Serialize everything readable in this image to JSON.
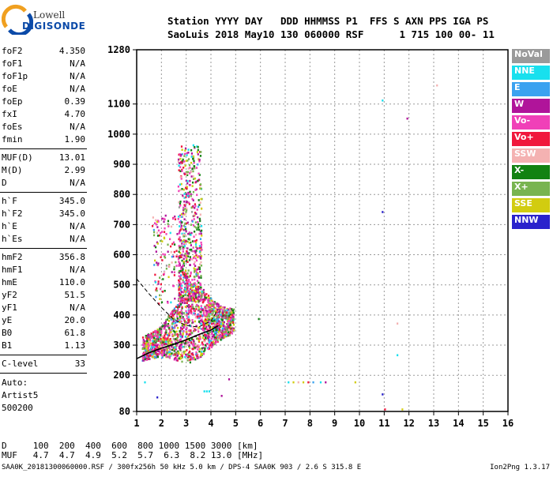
{
  "logo": {
    "line1": "Lowell",
    "line2": "DIGISONDE"
  },
  "header": {
    "line1": "Station YYYY DAY   DDD HHMMSS P1  FFS S AXN PPS IGA PS",
    "line2": "SaoLuis 2018 May10 130 060000 RSF      1 715 100 00- 11"
  },
  "params": [
    {
      "name": "foF2",
      "value": "4.350"
    },
    {
      "name": "foF1",
      "value": "N/A"
    },
    {
      "name": "foF1p",
      "value": "N/A"
    },
    {
      "name": "foE",
      "value": "N/A"
    },
    {
      "name": "foEp",
      "value": "0.39"
    },
    {
      "name": "fxI",
      "value": "4.70"
    },
    {
      "name": "foEs",
      "value": "N/A"
    },
    {
      "name": "fmin",
      "value": "1.90"
    },
    {
      "name": "MUF(D)",
      "value": "13.01"
    },
    {
      "name": "M(D)",
      "value": "2.99"
    },
    {
      "name": "D",
      "value": "N/A"
    },
    {
      "name": "h`F",
      "value": "345.0"
    },
    {
      "name": "h`F2",
      "value": "345.0"
    },
    {
      "name": "h`E",
      "value": "N/A"
    },
    {
      "name": "h`Es",
      "value": "N/A"
    },
    {
      "name": "hmF2",
      "value": "356.8"
    },
    {
      "name": "hmF1",
      "value": "N/A"
    },
    {
      "name": "hmE",
      "value": "110.0"
    },
    {
      "name": "yF2",
      "value": "51.5"
    },
    {
      "name": "yF1",
      "value": "N/A"
    },
    {
      "name": "yE",
      "value": "20.0"
    },
    {
      "name": "B0",
      "value": "61.8"
    },
    {
      "name": "B1",
      "value": "1.13"
    },
    {
      "name": "C-level",
      "value": "33"
    }
  ],
  "auto_lines": [
    "Auto:",
    "Artist5",
    "500200"
  ],
  "legend": [
    {
      "label": "NoVal",
      "color": "#9a9a9a"
    },
    {
      "label": "NNE",
      "color": "#18e0ee"
    },
    {
      "label": "E",
      "color": "#3aa2f0"
    },
    {
      "label": "W",
      "color": "#b0149a"
    },
    {
      "label": "Vo-",
      "color": "#f040b8"
    },
    {
      "label": "Vo+",
      "color": "#f0183c"
    },
    {
      "label": "SSW",
      "color": "#f4b2b2"
    },
    {
      "label": "X-",
      "color": "#128212"
    },
    {
      "label": "X+",
      "color": "#78b450"
    },
    {
      "label": "SSE",
      "color": "#d2cc10"
    },
    {
      "label": "NNW",
      "color": "#2a22cc"
    }
  ],
  "muf_table": {
    "row1": "D     100  200  400  600  800 1000 1500 3000 [km]",
    "row2": "MUF   4.7  4.7  4.9  5.2  5.7  6.3  8.2 13.0 [MHz]"
  },
  "footer": "SAA0K_20181300060000.RSF / 300fx256h 50 kHz 5.0 km / DPS-4 SAA0K 903 / 2.6 S 315.8 E",
  "version": "Ion2Png 1.3.17",
  "chart_data": {
    "type": "scatter",
    "x_ticks": [
      1,
      2,
      3,
      4,
      5,
      6,
      7,
      8,
      9,
      10,
      11,
      12,
      13,
      14,
      15,
      16
    ],
    "y_ticks": [
      80,
      200,
      300,
      400,
      500,
      600,
      700,
      800,
      900,
      1000,
      1100,
      1280
    ],
    "xlim": [
      1,
      16
    ],
    "ylim": [
      80,
      1280
    ],
    "grid": true,
    "profile_curve": [
      [
        1.0,
        255
      ],
      [
        1.5,
        275
      ],
      [
        2.0,
        290
      ],
      [
        2.5,
        303
      ],
      [
        3.0,
        318
      ],
      [
        3.5,
        335
      ],
      [
        4.0,
        350
      ],
      [
        4.3,
        365
      ]
    ],
    "ordinary_trace": [
      [
        1.0,
        520
      ],
      [
        1.5,
        470
      ],
      [
        2.0,
        425
      ],
      [
        2.5,
        385
      ],
      [
        3.0,
        365
      ],
      [
        3.5,
        360
      ],
      [
        4.0,
        380
      ],
      [
        4.3,
        420
      ]
    ],
    "isolated_points": [
      {
        "x": 1.3,
        "y": 180,
        "color": "#18e0ee"
      },
      {
        "x": 1.8,
        "y": 130,
        "color": "#2a22cc"
      },
      {
        "x": 3.7,
        "y": 150,
        "color": "#18e0ee"
      },
      {
        "x": 3.8,
        "y": 150,
        "color": "#18e0ee"
      },
      {
        "x": 3.9,
        "y": 150,
        "color": "#18e0ee"
      },
      {
        "x": 4.4,
        "y": 135,
        "color": "#b0149a"
      },
      {
        "x": 4.7,
        "y": 190,
        "color": "#b0149a"
      },
      {
        "x": 5.9,
        "y": 390,
        "color": "#128212"
      },
      {
        "x": 7.1,
        "y": 180,
        "color": "#18e0ee"
      },
      {
        "x": 7.3,
        "y": 180,
        "color": "#d2cc10"
      },
      {
        "x": 7.5,
        "y": 180,
        "color": "#f4b2b2"
      },
      {
        "x": 7.7,
        "y": 180,
        "color": "#d2cc10"
      },
      {
        "x": 7.9,
        "y": 180,
        "color": "#f0183c"
      },
      {
        "x": 8.1,
        "y": 180,
        "color": "#3aa2f0"
      },
      {
        "x": 8.4,
        "y": 180,
        "color": "#18e0ee"
      },
      {
        "x": 8.6,
        "y": 180,
        "color": "#b0149a"
      },
      {
        "x": 9.8,
        "y": 180,
        "color": "#d2cc10"
      },
      {
        "x": 10.9,
        "y": 1115,
        "color": "#18e0ee"
      },
      {
        "x": 10.9,
        "y": 745,
        "color": "#2a22cc"
      },
      {
        "x": 10.9,
        "y": 140,
        "color": "#2a22cc"
      },
      {
        "x": 11.0,
        "y": 90,
        "color": "#f0183c"
      },
      {
        "x": 11.5,
        "y": 270,
        "color": "#18e0ee"
      },
      {
        "x": 11.5,
        "y": 375,
        "color": "#f4b2b2"
      },
      {
        "x": 11.7,
        "y": 90,
        "color": "#d2cc10"
      },
      {
        "x": 11.9,
        "y": 1055,
        "color": "#b0149a"
      },
      {
        "x": 13.1,
        "y": 1165,
        "color": "#f4b2b2"
      }
    ]
  }
}
